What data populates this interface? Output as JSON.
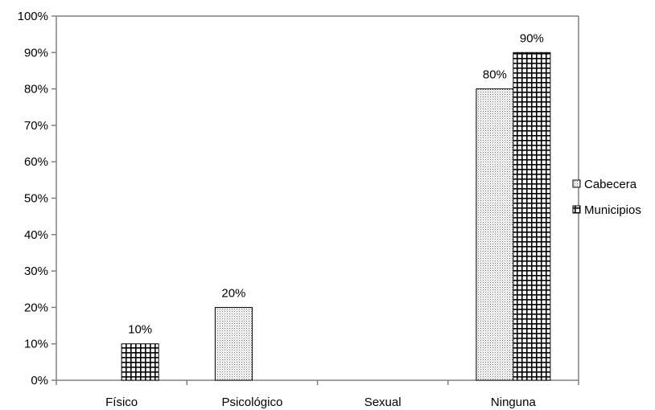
{
  "chart_data": {
    "type": "bar",
    "categories": [
      "Físico",
      "Psicológico",
      "Sexual",
      "Ninguna"
    ],
    "series": [
      {
        "name": "Cabecera",
        "values": [
          0,
          20,
          0,
          80
        ],
        "labels": [
          "",
          "20%",
          "",
          "80%"
        ]
      },
      {
        "name": "Municipios",
        "values": [
          10,
          0,
          0,
          90
        ],
        "labels": [
          "10%",
          "",
          "",
          "90%"
        ]
      }
    ],
    "yticks": [
      "0%",
      "10%",
      "20%",
      "30%",
      "40%",
      "50%",
      "60%",
      "70%",
      "80%",
      "90%",
      "100%"
    ],
    "ylim": [
      0,
      100
    ],
    "title": "",
    "xlabel": "",
    "ylabel": "",
    "grid": false,
    "legend_position": "right",
    "colors": {
      "axis": "#808080",
      "bar_border": "#000000",
      "cabecera_dots": "#6e6e6e",
      "municipios_grid": "#000000"
    }
  }
}
